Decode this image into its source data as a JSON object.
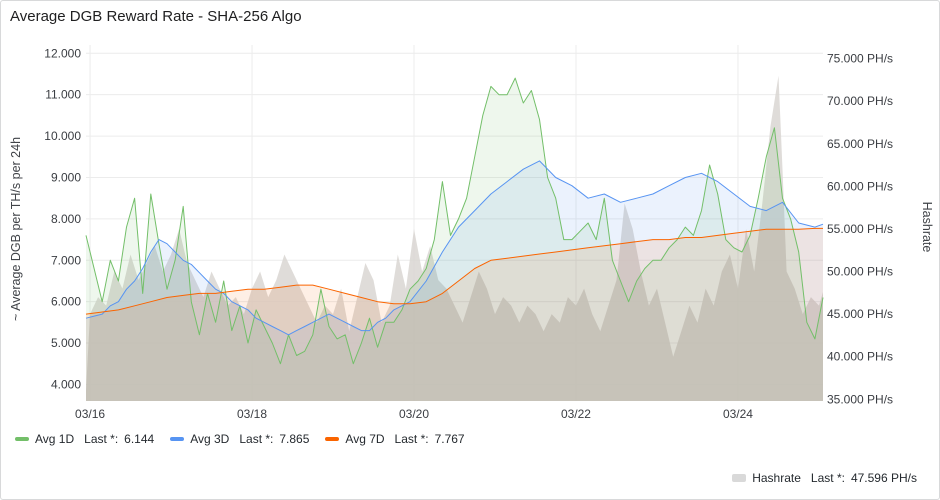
{
  "title": "Average DGB Reward Rate - SHA-256 Algo",
  "chart_data": {
    "type": "line",
    "ylabel": "~ Average DGB per TH/s per 24h",
    "y2label": "Hashrate",
    "y_ticks": [
      "12.000",
      "11.000",
      "10.000",
      "9.000",
      "8.000",
      "7.000",
      "6.000",
      "5.000",
      "4.000"
    ],
    "y_range": [
      3.6,
      12.2
    ],
    "y2_ticks": [
      "75.000 PH/s",
      "70.000 PH/s",
      "65.000 PH/s",
      "60.000 PH/s",
      "55.000 PH/s",
      "50.000 PH/s",
      "45.000 PH/s",
      "40.000 PH/s",
      "35.000 PH/s"
    ],
    "y2_range": [
      34.8,
      76.6
    ],
    "x_ticks": [
      "03/16",
      "03/18",
      "03/20",
      "03/22",
      "03/24"
    ],
    "x_range_days": [
      15.95,
      25.05
    ],
    "grid": true,
    "series": [
      {
        "name": "Avg 1D",
        "color": "#73bf69",
        "axis": "left",
        "last_label": "Last *:",
        "last_value": "6.144",
        "points": [
          [
            15.95,
            7.6
          ],
          [
            16.05,
            6.8
          ],
          [
            16.15,
            6.0
          ],
          [
            16.25,
            7.0
          ],
          [
            16.35,
            6.5
          ],
          [
            16.45,
            7.8
          ],
          [
            16.55,
            8.5
          ],
          [
            16.65,
            6.2
          ],
          [
            16.75,
            8.6
          ],
          [
            16.85,
            7.4
          ],
          [
            16.95,
            6.3
          ],
          [
            17.05,
            7.0
          ],
          [
            17.15,
            8.3
          ],
          [
            17.25,
            6.0
          ],
          [
            17.35,
            5.2
          ],
          [
            17.45,
            6.2
          ],
          [
            17.55,
            5.5
          ],
          [
            17.65,
            6.5
          ],
          [
            17.75,
            5.3
          ],
          [
            17.85,
            5.9
          ],
          [
            17.95,
            5.0
          ],
          [
            18.05,
            5.8
          ],
          [
            18.15,
            5.4
          ],
          [
            18.25,
            5.0
          ],
          [
            18.35,
            4.5
          ],
          [
            18.45,
            5.2
          ],
          [
            18.55,
            4.7
          ],
          [
            18.65,
            4.8
          ],
          [
            18.75,
            5.2
          ],
          [
            18.85,
            6.3
          ],
          [
            18.95,
            5.4
          ],
          [
            19.05,
            5.1
          ],
          [
            19.15,
            5.2
          ],
          [
            19.25,
            4.5
          ],
          [
            19.35,
            5.0
          ],
          [
            19.45,
            5.6
          ],
          [
            19.55,
            4.9
          ],
          [
            19.65,
            5.5
          ],
          [
            19.75,
            5.5
          ],
          [
            19.85,
            5.8
          ],
          [
            19.95,
            6.3
          ],
          [
            20.05,
            6.5
          ],
          [
            20.15,
            6.8
          ],
          [
            20.25,
            7.5
          ],
          [
            20.35,
            8.9
          ],
          [
            20.45,
            7.6
          ],
          [
            20.55,
            8.0
          ],
          [
            20.65,
            8.5
          ],
          [
            20.75,
            9.5
          ],
          [
            20.85,
            10.5
          ],
          [
            20.95,
            11.2
          ],
          [
            21.05,
            11.0
          ],
          [
            21.15,
            11.0
          ],
          [
            21.25,
            11.4
          ],
          [
            21.35,
            10.8
          ],
          [
            21.45,
            11.1
          ],
          [
            21.55,
            10.4
          ],
          [
            21.65,
            9.0
          ],
          [
            21.75,
            8.5
          ],
          [
            21.85,
            7.5
          ],
          [
            21.95,
            7.5
          ],
          [
            22.05,
            7.7
          ],
          [
            22.15,
            7.9
          ],
          [
            22.25,
            7.5
          ],
          [
            22.35,
            8.5
          ],
          [
            22.45,
            7.0
          ],
          [
            22.55,
            6.5
          ],
          [
            22.65,
            6.0
          ],
          [
            22.75,
            6.5
          ],
          [
            22.85,
            6.8
          ],
          [
            22.95,
            7.0
          ],
          [
            23.05,
            7.0
          ],
          [
            23.15,
            7.3
          ],
          [
            23.25,
            7.5
          ],
          [
            23.35,
            7.8
          ],
          [
            23.45,
            7.6
          ],
          [
            23.55,
            8.2
          ],
          [
            23.65,
            9.3
          ],
          [
            23.75,
            8.6
          ],
          [
            23.85,
            7.5
          ],
          [
            23.95,
            7.3
          ],
          [
            24.05,
            7.2
          ],
          [
            24.15,
            7.6
          ],
          [
            24.25,
            8.5
          ],
          [
            24.35,
            9.5
          ],
          [
            24.45,
            10.2
          ],
          [
            24.55,
            8.5
          ],
          [
            24.65,
            8.0
          ],
          [
            24.75,
            7.2
          ],
          [
            24.85,
            5.5
          ],
          [
            24.95,
            5.1
          ],
          [
            25.05,
            6.1
          ]
        ]
      },
      {
        "name": "Avg 3D",
        "color": "#5794f2",
        "axis": "left",
        "last_label": "Last *:",
        "last_value": "7.865",
        "points": [
          [
            15.95,
            5.6
          ],
          [
            16.05,
            5.65
          ],
          [
            16.15,
            5.7
          ],
          [
            16.25,
            5.9
          ],
          [
            16.35,
            6.0
          ],
          [
            16.45,
            6.3
          ],
          [
            16.55,
            6.5
          ],
          [
            16.65,
            6.8
          ],
          [
            16.75,
            7.2
          ],
          [
            16.85,
            7.5
          ],
          [
            16.95,
            7.4
          ],
          [
            17.05,
            7.2
          ],
          [
            17.15,
            7.0
          ],
          [
            17.25,
            6.9
          ],
          [
            17.35,
            6.7
          ],
          [
            17.45,
            6.5
          ],
          [
            17.55,
            6.3
          ],
          [
            17.65,
            6.2
          ],
          [
            17.75,
            6.0
          ],
          [
            17.85,
            5.9
          ],
          [
            17.95,
            5.8
          ],
          [
            18.05,
            5.6
          ],
          [
            18.15,
            5.5
          ],
          [
            18.25,
            5.4
          ],
          [
            18.35,
            5.3
          ],
          [
            18.45,
            5.2
          ],
          [
            18.55,
            5.3
          ],
          [
            18.65,
            5.4
          ],
          [
            18.75,
            5.5
          ],
          [
            18.85,
            5.6
          ],
          [
            18.95,
            5.7
          ],
          [
            19.05,
            5.6
          ],
          [
            19.15,
            5.5
          ],
          [
            19.25,
            5.4
          ],
          [
            19.35,
            5.3
          ],
          [
            19.45,
            5.3
          ],
          [
            19.55,
            5.5
          ],
          [
            19.65,
            5.6
          ],
          [
            19.75,
            5.8
          ],
          [
            19.95,
            6.0
          ],
          [
            20.15,
            6.5
          ],
          [
            20.35,
            7.2
          ],
          [
            20.55,
            7.8
          ],
          [
            20.75,
            8.2
          ],
          [
            20.95,
            8.6
          ],
          [
            21.15,
            8.9
          ],
          [
            21.35,
            9.2
          ],
          [
            21.55,
            9.4
          ],
          [
            21.75,
            9.0
          ],
          [
            21.95,
            8.8
          ],
          [
            22.15,
            8.5
          ],
          [
            22.35,
            8.6
          ],
          [
            22.55,
            8.4
          ],
          [
            22.75,
            8.5
          ],
          [
            22.95,
            8.6
          ],
          [
            23.15,
            8.8
          ],
          [
            23.35,
            9.0
          ],
          [
            23.55,
            9.1
          ],
          [
            23.75,
            8.9
          ],
          [
            23.95,
            8.6
          ],
          [
            24.15,
            8.3
          ],
          [
            24.35,
            8.2
          ],
          [
            24.55,
            8.4
          ],
          [
            24.75,
            7.9
          ],
          [
            24.95,
            7.8
          ],
          [
            25.05,
            7.87
          ]
        ]
      },
      {
        "name": "Avg 7D",
        "color": "#fa6400",
        "axis": "left",
        "last_label": "Last *:",
        "last_value": "7.767",
        "points": [
          [
            15.95,
            5.7
          ],
          [
            16.15,
            5.75
          ],
          [
            16.35,
            5.8
          ],
          [
            16.55,
            5.9
          ],
          [
            16.75,
            6.0
          ],
          [
            16.95,
            6.1
          ],
          [
            17.15,
            6.15
          ],
          [
            17.35,
            6.2
          ],
          [
            17.55,
            6.2
          ],
          [
            17.75,
            6.25
          ],
          [
            17.95,
            6.3
          ],
          [
            18.15,
            6.3
          ],
          [
            18.35,
            6.35
          ],
          [
            18.55,
            6.4
          ],
          [
            18.75,
            6.4
          ],
          [
            18.95,
            6.3
          ],
          [
            19.15,
            6.2
          ],
          [
            19.35,
            6.1
          ],
          [
            19.55,
            6.0
          ],
          [
            19.75,
            5.95
          ],
          [
            19.95,
            5.95
          ],
          [
            20.15,
            6.0
          ],
          [
            20.35,
            6.2
          ],
          [
            20.55,
            6.5
          ],
          [
            20.75,
            6.8
          ],
          [
            20.95,
            7.0
          ],
          [
            21.15,
            7.05
          ],
          [
            21.35,
            7.1
          ],
          [
            21.55,
            7.15
          ],
          [
            21.75,
            7.2
          ],
          [
            21.95,
            7.25
          ],
          [
            22.15,
            7.3
          ],
          [
            22.35,
            7.35
          ],
          [
            22.55,
            7.4
          ],
          [
            22.75,
            7.45
          ],
          [
            22.95,
            7.5
          ],
          [
            23.15,
            7.5
          ],
          [
            23.35,
            7.55
          ],
          [
            23.55,
            7.55
          ],
          [
            23.75,
            7.6
          ],
          [
            23.95,
            7.65
          ],
          [
            24.15,
            7.7
          ],
          [
            24.35,
            7.75
          ],
          [
            24.55,
            7.75
          ],
          [
            24.75,
            7.75
          ],
          [
            24.95,
            7.77
          ],
          [
            25.05,
            7.77
          ]
        ]
      },
      {
        "name": "Hashrate",
        "color": "#d9d6d2",
        "axis": "right",
        "last_label": "Last *:",
        "last_value": "47.596 PH/s",
        "points": [
          [
            15.95,
            36
          ],
          [
            16.0,
            45
          ],
          [
            16.1,
            47
          ],
          [
            16.2,
            46
          ],
          [
            16.3,
            50
          ],
          [
            16.4,
            48
          ],
          [
            16.5,
            52
          ],
          [
            16.6,
            49
          ],
          [
            16.7,
            51
          ],
          [
            16.8,
            53
          ],
          [
            16.9,
            50
          ],
          [
            17.0,
            52
          ],
          [
            17.1,
            55
          ],
          [
            17.2,
            51
          ],
          [
            17.3,
            49
          ],
          [
            17.4,
            47
          ],
          [
            17.5,
            50
          ],
          [
            17.6,
            48
          ],
          [
            17.7,
            46
          ],
          [
            17.8,
            47
          ],
          [
            17.9,
            45
          ],
          [
            18.0,
            48
          ],
          [
            18.1,
            50
          ],
          [
            18.2,
            47
          ],
          [
            18.3,
            49
          ],
          [
            18.4,
            52
          ],
          [
            18.5,
            50
          ],
          [
            18.6,
            48
          ],
          [
            18.7,
            46
          ],
          [
            18.8,
            44
          ],
          [
            18.9,
            46
          ],
          [
            19.0,
            45
          ],
          [
            19.1,
            48
          ],
          [
            19.2,
            43
          ],
          [
            19.3,
            47
          ],
          [
            19.4,
            51
          ],
          [
            19.5,
            49
          ],
          [
            19.6,
            44
          ],
          [
            19.7,
            46
          ],
          [
            19.8,
            52
          ],
          [
            19.9,
            48
          ],
          [
            20.0,
            55
          ],
          [
            20.1,
            50
          ],
          [
            20.2,
            53
          ],
          [
            20.3,
            49
          ],
          [
            20.4,
            48
          ],
          [
            20.5,
            46
          ],
          [
            20.6,
            44
          ],
          [
            20.7,
            47
          ],
          [
            20.8,
            50
          ],
          [
            20.9,
            48
          ],
          [
            21.0,
            45
          ],
          [
            21.1,
            47
          ],
          [
            21.2,
            46
          ],
          [
            21.3,
            44
          ],
          [
            21.4,
            46
          ],
          [
            21.5,
            45
          ],
          [
            21.6,
            43
          ],
          [
            21.7,
            45
          ],
          [
            21.8,
            44
          ],
          [
            21.9,
            47
          ],
          [
            22.0,
            46
          ],
          [
            22.1,
            48
          ],
          [
            22.2,
            45
          ],
          [
            22.3,
            43
          ],
          [
            22.4,
            46
          ],
          [
            22.5,
            49
          ],
          [
            22.6,
            58
          ],
          [
            22.7,
            55
          ],
          [
            22.8,
            50
          ],
          [
            22.9,
            46
          ],
          [
            23.0,
            48
          ],
          [
            23.1,
            44
          ],
          [
            23.2,
            40
          ],
          [
            23.3,
            43
          ],
          [
            23.4,
            46
          ],
          [
            23.5,
            44
          ],
          [
            23.6,
            48
          ],
          [
            23.7,
            46
          ],
          [
            23.8,
            50
          ],
          [
            23.9,
            52
          ],
          [
            24.0,
            48
          ],
          [
            24.1,
            55
          ],
          [
            24.2,
            50
          ],
          [
            24.3,
            58
          ],
          [
            24.4,
            67
          ],
          [
            24.5,
            73
          ],
          [
            24.55,
            62
          ],
          [
            24.6,
            50
          ],
          [
            24.7,
            48
          ],
          [
            24.8,
            45
          ],
          [
            24.9,
            47
          ],
          [
            25.0,
            46
          ],
          [
            25.05,
            47.6
          ]
        ]
      }
    ]
  }
}
